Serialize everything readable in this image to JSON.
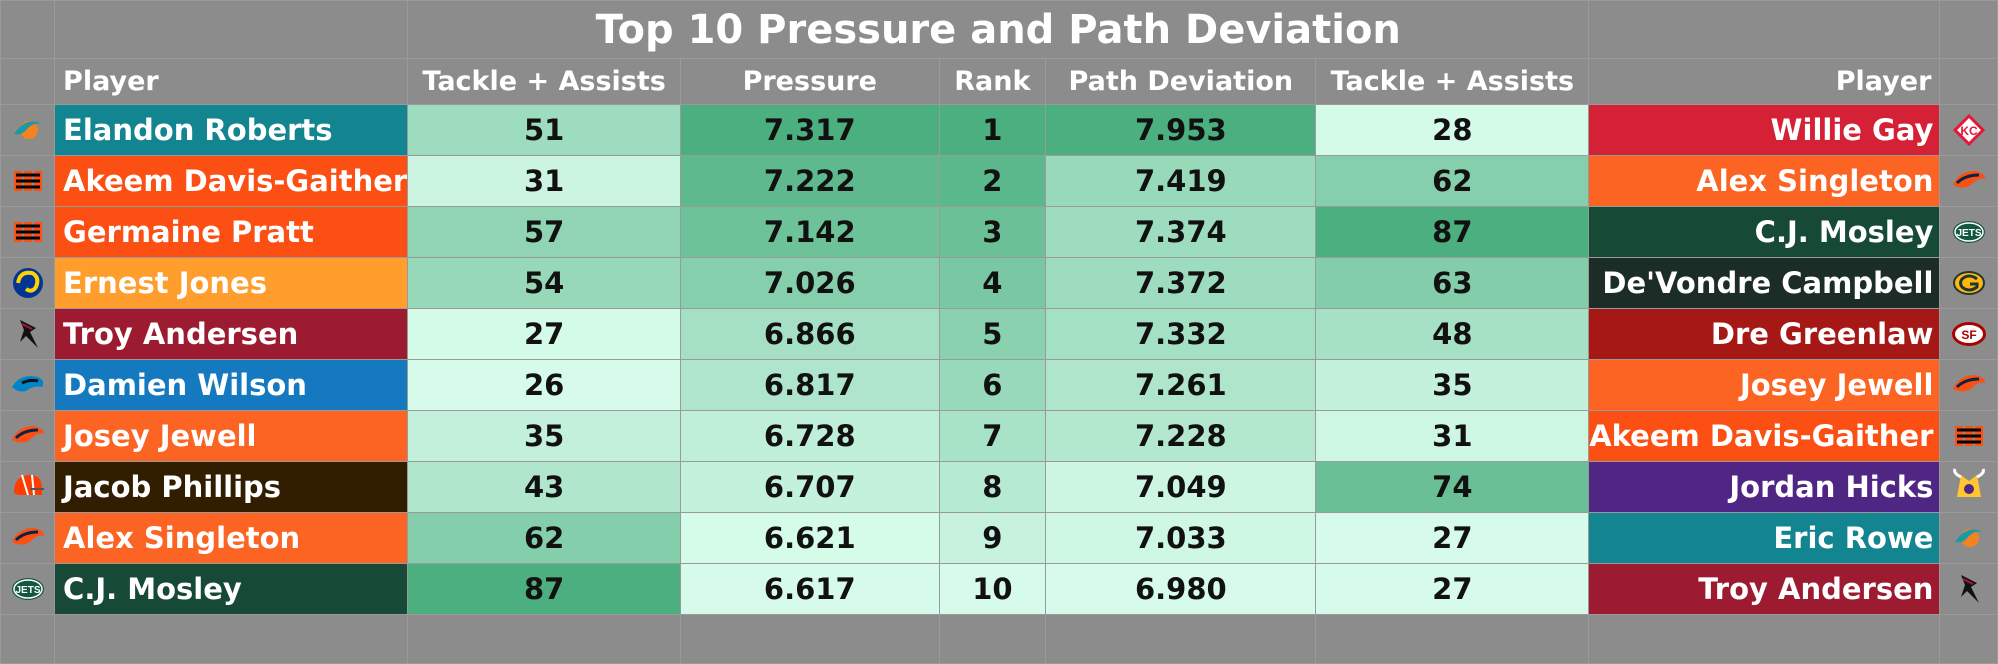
{
  "title": "Top 10 Pressure and Path Deviation",
  "headers": {
    "player_left": "Player",
    "tackles_left": "Tackle + Assists",
    "pressure": "Pressure",
    "rank": "Rank",
    "path_deviation": "Path Deviation",
    "tackles_right": "Tackle + Assists",
    "player_right": "Player"
  },
  "rows": [
    {
      "rank": "1",
      "left": {
        "player": "Elandon Roberts",
        "team_color": "#128590",
        "logo_icon": "dolphins-logo-icon",
        "tackles": "51",
        "pressure": "7.317"
      },
      "right": {
        "path_deviation": "7.953",
        "tackles": "28",
        "player": "Willie Gay",
        "team_color": "#d52136",
        "logo_icon": "chiefs-logo-icon"
      }
    },
    {
      "rank": "2",
      "left": {
        "player": "Akeem Davis-Gaither",
        "team_color": "#fb4f14",
        "logo_icon": "bengals-logo-icon",
        "tackles": "31",
        "pressure": "7.222"
      },
      "right": {
        "path_deviation": "7.419",
        "tackles": "62",
        "player": "Alex Singleton",
        "team_color": "#fb6422",
        "logo_icon": "broncos-logo-icon"
      }
    },
    {
      "rank": "3",
      "left": {
        "player": "Germaine Pratt",
        "team_color": "#fb4f14",
        "logo_icon": "bengals-logo-icon",
        "tackles": "57",
        "pressure": "7.142"
      },
      "right": {
        "path_deviation": "7.374",
        "tackles": "87",
        "player": "C.J. Mosley",
        "team_color": "#174a36",
        "logo_icon": "jets-logo-icon"
      }
    },
    {
      "rank": "4",
      "left": {
        "player": "Ernest Jones",
        "team_color": "#ff9e2c",
        "logo_icon": "rams-logo-icon",
        "tackles": "54",
        "pressure": "7.026"
      },
      "right": {
        "path_deviation": "7.372",
        "tackles": "63",
        "player": "De'Vondre Campbell",
        "team_color": "#1c2d27",
        "logo_icon": "packers-logo-icon"
      }
    },
    {
      "rank": "5",
      "left": {
        "player": "Troy Andersen",
        "team_color": "#9c1b30",
        "logo_icon": "falcons-logo-icon",
        "tackles": "27",
        "pressure": "6.866"
      },
      "right": {
        "path_deviation": "7.332",
        "tackles": "48",
        "player": "Dre Greenlaw",
        "team_color": "#a61815",
        "logo_icon": "49ers-logo-icon"
      }
    },
    {
      "rank": "6",
      "left": {
        "player": "Damien Wilson",
        "team_color": "#1579c0",
        "logo_icon": "panthers-logo-icon",
        "tackles": "26",
        "pressure": "6.817"
      },
      "right": {
        "path_deviation": "7.261",
        "tackles": "35",
        "player": "Josey Jewell",
        "team_color": "#fb6422",
        "logo_icon": "broncos-logo-icon"
      }
    },
    {
      "rank": "7",
      "left": {
        "player": "Josey Jewell",
        "team_color": "#fb6422",
        "logo_icon": "broncos-logo-icon",
        "tackles": "35",
        "pressure": "6.728"
      },
      "right": {
        "path_deviation": "7.228",
        "tackles": "31",
        "player": "Akeem Davis-Gaither",
        "team_color": "#fb4f14",
        "logo_icon": "bengals-logo-icon"
      }
    },
    {
      "rank": "8",
      "left": {
        "player": "Jacob Phillips",
        "team_color": "#311d00",
        "logo_icon": "browns-logo-icon",
        "tackles": "43",
        "pressure": "6.707"
      },
      "right": {
        "path_deviation": "7.049",
        "tackles": "74",
        "player": "Jordan Hicks",
        "team_color": "#4f2683",
        "logo_icon": "vikings-logo-icon"
      }
    },
    {
      "rank": "9",
      "left": {
        "player": "Alex Singleton",
        "team_color": "#fb6422",
        "logo_icon": "broncos-logo-icon",
        "tackles": "62",
        "pressure": "6.621"
      },
      "right": {
        "path_deviation": "7.033",
        "tackles": "27",
        "player": "Eric Rowe",
        "team_color": "#128590",
        "logo_icon": "dolphins-logo-icon"
      }
    },
    {
      "rank": "10",
      "left": {
        "player": "C.J. Mosley",
        "team_color": "#174a36",
        "logo_icon": "jets-logo-icon",
        "tackles": "87",
        "pressure": "6.617"
      },
      "right": {
        "path_deviation": "6.980",
        "tackles": "27",
        "player": "Troy Andersen",
        "team_color": "#9c1b30",
        "logo_icon": "falcons-logo-icon"
      }
    }
  ],
  "heat_colors": {
    "low": "#d6fbea",
    "high": "#4caf80"
  }
}
